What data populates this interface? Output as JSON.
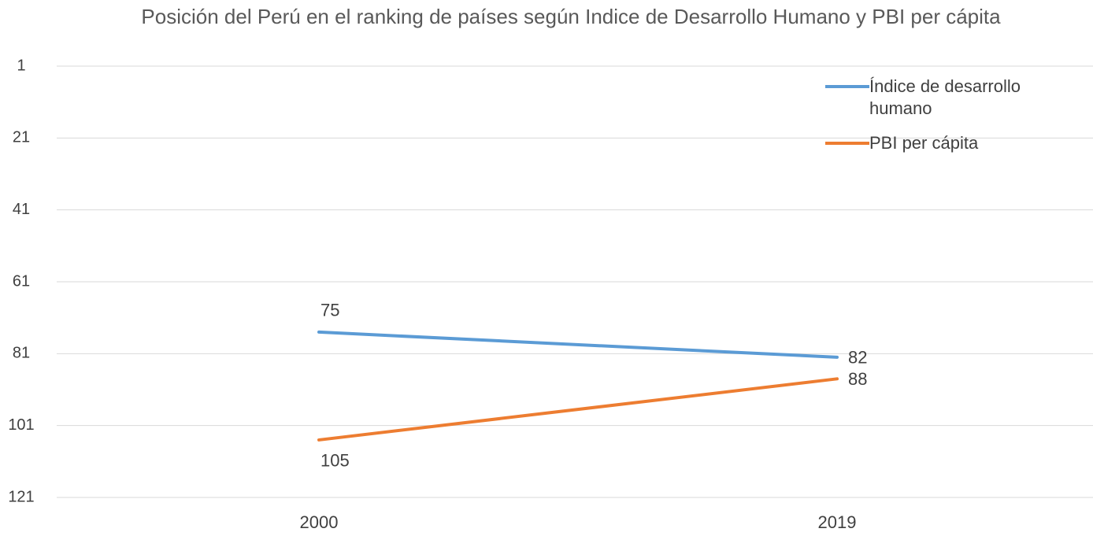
{
  "chart_data": {
    "type": "line",
    "title": "Posición del Perú en el ranking de países según Indice de Desarrollo Humano y PBI per cápita",
    "categories": [
      "2000",
      "2019"
    ],
    "series": [
      {
        "name": "Índice de desarrollo humano",
        "color": "#5b9bd5",
        "values": [
          75,
          82
        ]
      },
      {
        "name": "PBI per cápita",
        "color": "#ed7d31",
        "values": [
          105,
          88
        ]
      }
    ],
    "ylim": [
      1,
      121
    ],
    "yticks": [
      1,
      21,
      41,
      61,
      81,
      101,
      121
    ],
    "y_reversed": true,
    "grid": true,
    "legend": "top-right",
    "data_labels": true
  }
}
